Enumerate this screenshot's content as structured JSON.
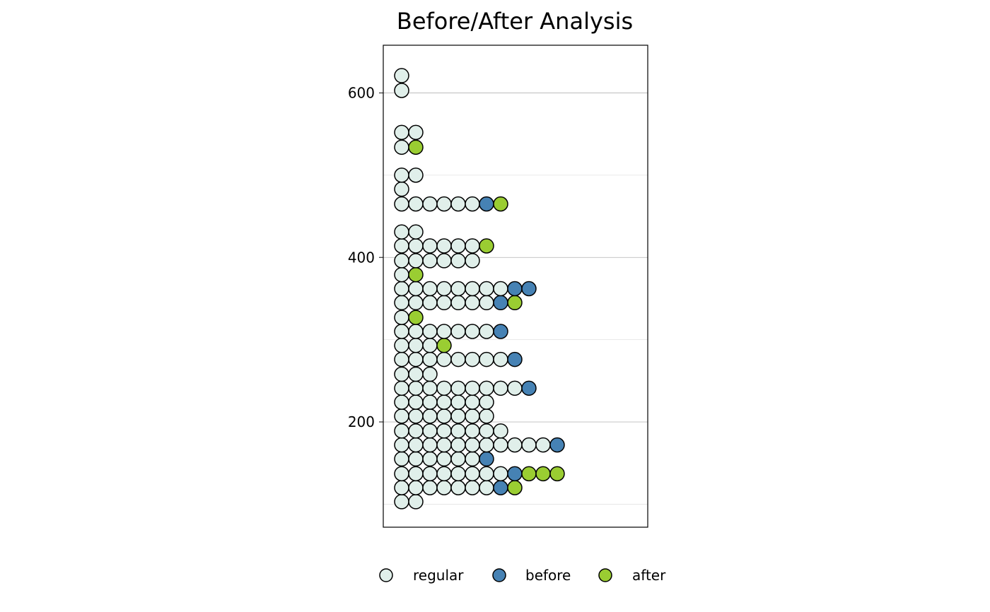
{
  "chart_data": {
    "type": "dotplot",
    "title": "Before/After Analysis",
    "xlabel": "",
    "ylabel": "",
    "ylim": [
      72,
      658
    ],
    "y_ticks": [
      200,
      400,
      600
    ],
    "y_minor_ticks": [
      100,
      300,
      500
    ],
    "grid": true,
    "legend_position": "bottom",
    "colors": {
      "regular": "#e0efea",
      "before": "#4682b4",
      "after": "#9acd32"
    },
    "legend": [
      {
        "key": "regular",
        "label": "regular"
      },
      {
        "key": "before",
        "label": "before"
      },
      {
        "key": "after",
        "label": "after"
      }
    ],
    "rows": [
      {
        "y": 103,
        "dots": [
          "regular",
          "regular"
        ]
      },
      {
        "y": 120,
        "dots": [
          "regular",
          "regular",
          "regular",
          "regular",
          "regular",
          "regular",
          "regular",
          "before",
          "after"
        ]
      },
      {
        "y": 137,
        "dots": [
          "regular",
          "regular",
          "regular",
          "regular",
          "regular",
          "regular",
          "regular",
          "regular",
          "before",
          "after",
          "after",
          "after"
        ]
      },
      {
        "y": 155,
        "dots": [
          "regular",
          "regular",
          "regular",
          "regular",
          "regular",
          "regular",
          "before"
        ]
      },
      {
        "y": 172,
        "dots": [
          "regular",
          "regular",
          "regular",
          "regular",
          "regular",
          "regular",
          "regular",
          "regular",
          "regular",
          "regular",
          "regular",
          "before"
        ]
      },
      {
        "y": 189,
        "dots": [
          "regular",
          "regular",
          "regular",
          "regular",
          "regular",
          "regular",
          "regular",
          "regular"
        ]
      },
      {
        "y": 207,
        "dots": [
          "regular",
          "regular",
          "regular",
          "regular",
          "regular",
          "regular",
          "regular"
        ]
      },
      {
        "y": 224,
        "dots": [
          "regular",
          "regular",
          "regular",
          "regular",
          "regular",
          "regular",
          "regular"
        ]
      },
      {
        "y": 241,
        "dots": [
          "regular",
          "regular",
          "regular",
          "regular",
          "regular",
          "regular",
          "regular",
          "regular",
          "regular",
          "before"
        ]
      },
      {
        "y": 258,
        "dots": [
          "regular",
          "regular",
          "regular"
        ]
      },
      {
        "y": 276,
        "dots": [
          "regular",
          "regular",
          "regular",
          "regular",
          "regular",
          "regular",
          "regular",
          "regular",
          "before"
        ]
      },
      {
        "y": 293,
        "dots": [
          "regular",
          "regular",
          "regular",
          "after"
        ]
      },
      {
        "y": 310,
        "dots": [
          "regular",
          "regular",
          "regular",
          "regular",
          "regular",
          "regular",
          "regular",
          "before"
        ]
      },
      {
        "y": 327,
        "dots": [
          "regular",
          "after"
        ]
      },
      {
        "y": 345,
        "dots": [
          "regular",
          "regular",
          "regular",
          "regular",
          "regular",
          "regular",
          "regular",
          "before",
          "after"
        ]
      },
      {
        "y": 362,
        "dots": [
          "regular",
          "regular",
          "regular",
          "regular",
          "regular",
          "regular",
          "regular",
          "regular",
          "before",
          "before"
        ]
      },
      {
        "y": 379,
        "dots": [
          "regular",
          "after"
        ]
      },
      {
        "y": 396,
        "dots": [
          "regular",
          "regular",
          "regular",
          "regular",
          "regular",
          "regular"
        ]
      },
      {
        "y": 414,
        "dots": [
          "regular",
          "regular",
          "regular",
          "regular",
          "regular",
          "regular",
          "after"
        ]
      },
      {
        "y": 431,
        "dots": [
          "regular",
          "regular"
        ]
      },
      {
        "y": 465,
        "dots": [
          "regular",
          "regular",
          "regular",
          "regular",
          "regular",
          "regular",
          "before",
          "after"
        ]
      },
      {
        "y": 483,
        "dots": [
          "regular"
        ]
      },
      {
        "y": 500,
        "dots": [
          "regular",
          "regular"
        ]
      },
      {
        "y": 534,
        "dots": [
          "regular",
          "after"
        ]
      },
      {
        "y": 552,
        "dots": [
          "regular",
          "regular"
        ]
      },
      {
        "y": 603,
        "dots": [
          "regular"
        ]
      },
      {
        "y": 621,
        "dots": [
          "regular"
        ]
      }
    ]
  }
}
